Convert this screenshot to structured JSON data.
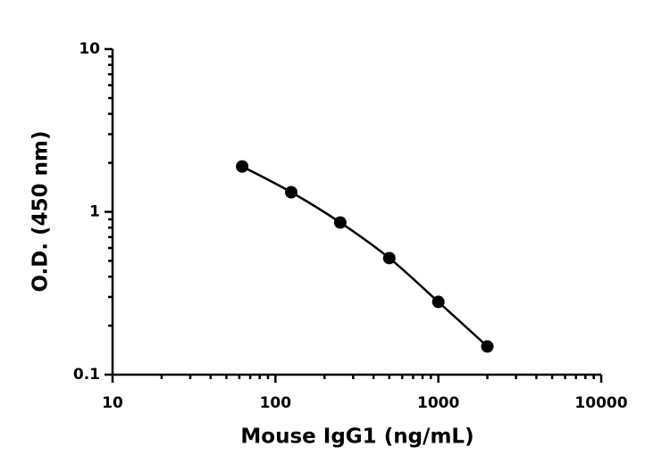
{
  "chart_data": {
    "type": "scatter",
    "x_label": "Mouse IgG1 (ng/mL)",
    "y_label": "O.D. (450 nm)",
    "x": [
      62.5,
      125,
      250,
      500,
      1000,
      2000
    ],
    "values": [
      1.9,
      1.32,
      0.86,
      0.52,
      0.28,
      0.149
    ],
    "color": "#000000",
    "fit_curve": true,
    "xscale": "log",
    "yscale": "log",
    "xlim": [
      10,
      10000
    ],
    "ylim": [
      0.1,
      10
    ],
    "xticks": [
      10,
      100,
      1000,
      10000
    ],
    "yticks": [
      0.1,
      1,
      10
    ],
    "xminorticks": [
      20,
      30,
      40,
      50,
      60,
      70,
      80,
      90,
      200,
      300,
      400,
      500,
      600,
      700,
      800,
      900,
      2000,
      3000,
      4000,
      5000,
      6000,
      7000,
      8000,
      9000
    ],
    "yminorticks": [
      0.2,
      0.3,
      0.4,
      0.5,
      0.6,
      0.7,
      0.8,
      0.9,
      2,
      3,
      4,
      5,
      6,
      7,
      8,
      9
    ],
    "grid": false
  }
}
